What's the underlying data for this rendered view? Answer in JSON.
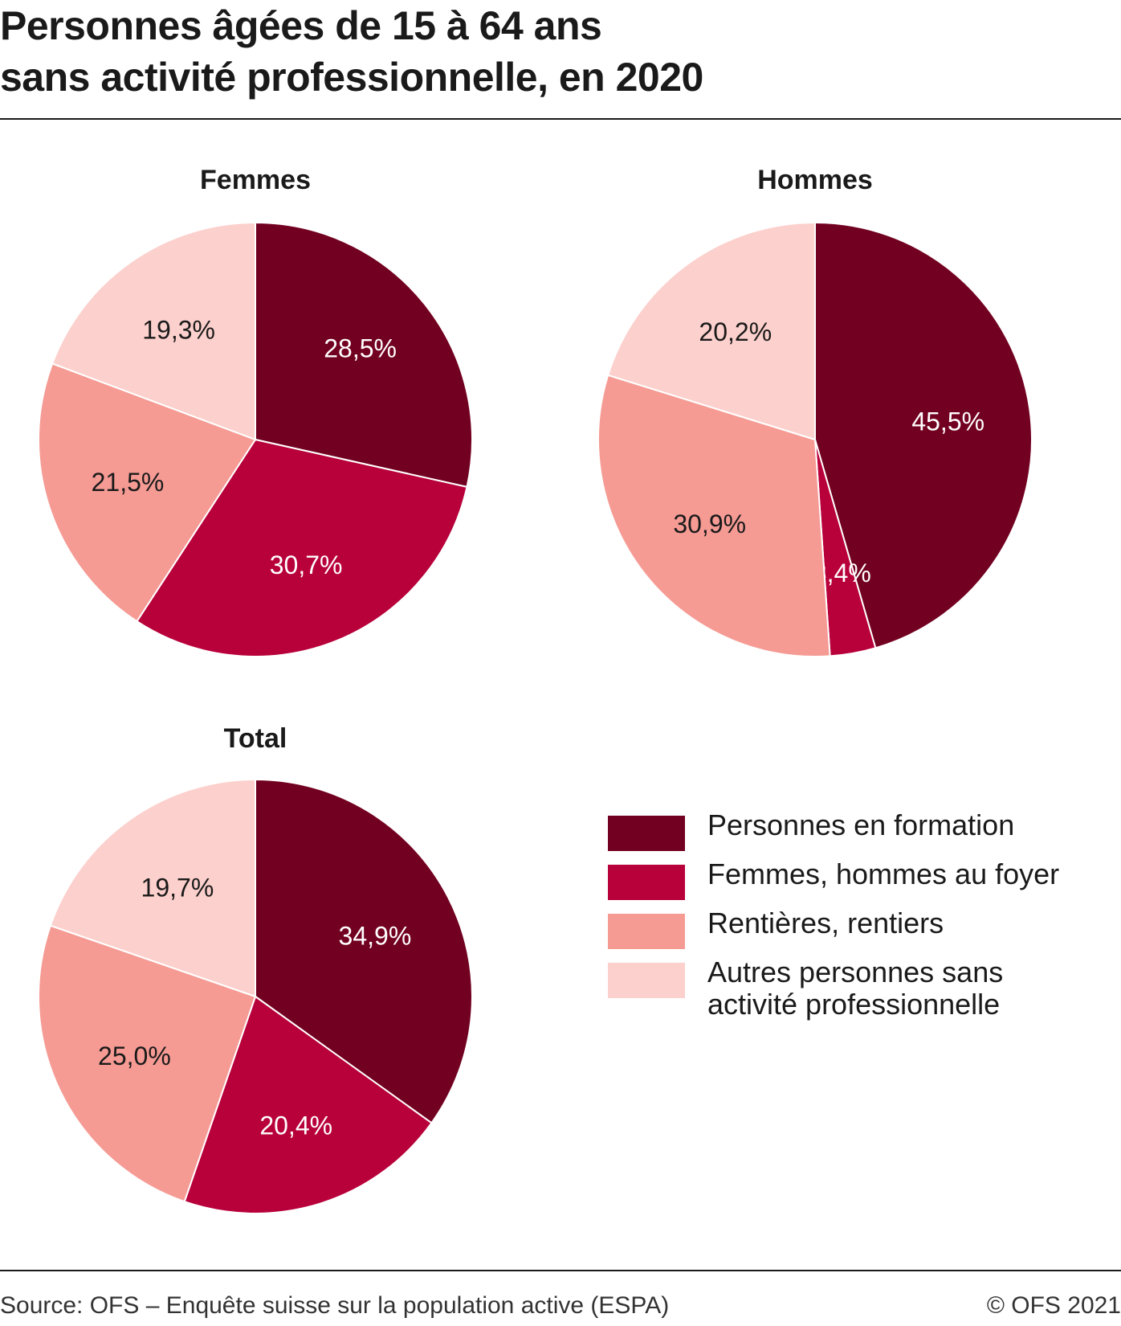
{
  "header": {
    "title_lines": [
      "Personnes âgées de 15 à 64 ans",
      "sans activité professionnelle, en 2020"
    ]
  },
  "footer": {
    "source": "Source: OFS – Enquête suisse sur la population active (ESPA)",
    "copyright": "© OFS 2021"
  },
  "legend": {
    "items": [
      {
        "label_lines": [
          "Personnes en formation"
        ],
        "color": "#720020"
      },
      {
        "label_lines": [
          "Femmes, hommes au foyer"
        ],
        "color": "#b8003a"
      },
      {
        "label_lines": [
          "Rentières, rentiers"
        ],
        "color": "#f59b94"
      },
      {
        "label_lines": [
          "Autres personnes sans",
          "activité professionnelle"
        ],
        "color": "#fcd0cc"
      }
    ]
  },
  "chart_data": [
    {
      "type": "pie",
      "title": "Femmes",
      "categories": [
        "Personnes en formation",
        "Femmes, hommes au foyer",
        "Rentières, rentiers",
        "Autres personnes sans activité professionnelle"
      ],
      "values": [
        28.5,
        30.7,
        21.5,
        19.3
      ],
      "labels": [
        "28,5%",
        "30,7%",
        "21,5%",
        "19,3%"
      ],
      "colors": [
        "#720020",
        "#b8003a",
        "#f59b94",
        "#fcd0cc"
      ],
      "label_colors": [
        "#ffffff",
        "#ffffff",
        "#1a1a1a",
        "#1a1a1a"
      ]
    },
    {
      "type": "pie",
      "title": "Hommes",
      "categories": [
        "Personnes en formation",
        "Femmes, hommes au foyer",
        "Rentières, rentiers",
        "Autres personnes sans activité professionnelle"
      ],
      "values": [
        45.5,
        3.4,
        30.9,
        20.2
      ],
      "labels": [
        "45,5%",
        "3,4%",
        "30,9%",
        "20,2%"
      ],
      "colors": [
        "#720020",
        "#b8003a",
        "#f59b94",
        "#fcd0cc"
      ],
      "label_colors": [
        "#ffffff",
        "#ffffff",
        "#1a1a1a",
        "#1a1a1a"
      ]
    },
    {
      "type": "pie",
      "title": "Total",
      "categories": [
        "Personnes en formation",
        "Femmes, hommes au foyer",
        "Rentières, rentiers",
        "Autres personnes sans activité professionnelle"
      ],
      "values": [
        34.9,
        20.4,
        25.0,
        19.7
      ],
      "labels": [
        "34,9%",
        "20,4%",
        "25,0%",
        "19,7%"
      ],
      "colors": [
        "#720020",
        "#b8003a",
        "#f59b94",
        "#fcd0cc"
      ],
      "label_colors": [
        "#ffffff",
        "#ffffff",
        "#1a1a1a",
        "#1a1a1a"
      ]
    }
  ]
}
